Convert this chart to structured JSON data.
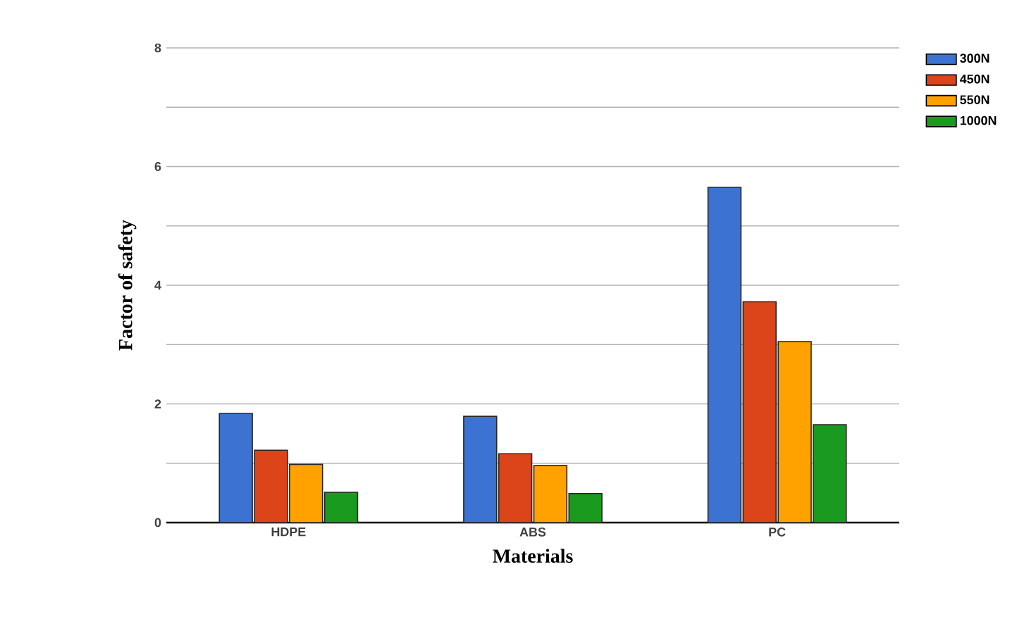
{
  "chart_data": {
    "type": "bar",
    "xlabel": "Materials",
    "ylabel": "Factor of safety",
    "categories": [
      "HDPE",
      "ABS",
      "PC"
    ],
    "series": [
      {
        "name": "300N",
        "color": "#3c73d2",
        "values": [
          1.84,
          1.79,
          5.65
        ]
      },
      {
        "name": "450N",
        "color": "#dc4419",
        "values": [
          1.22,
          1.16,
          3.72
        ]
      },
      {
        "name": "550N",
        "color": "#ffa200",
        "values": [
          0.98,
          0.96,
          3.05
        ]
      },
      {
        "name": "1000N",
        "color": "#1a9a1f",
        "values": [
          0.51,
          0.49,
          1.65
        ]
      }
    ],
    "ylim": [
      0,
      8
    ],
    "yticks": [
      0,
      {
        "value": 1,
        "label": null
      },
      2,
      {
        "value": 3,
        "label": null
      },
      4,
      {
        "value": 5,
        "label": null
      },
      6,
      {
        "value": 7,
        "label": null
      },
      8
    ],
    "grid": "y",
    "legend": "right"
  }
}
